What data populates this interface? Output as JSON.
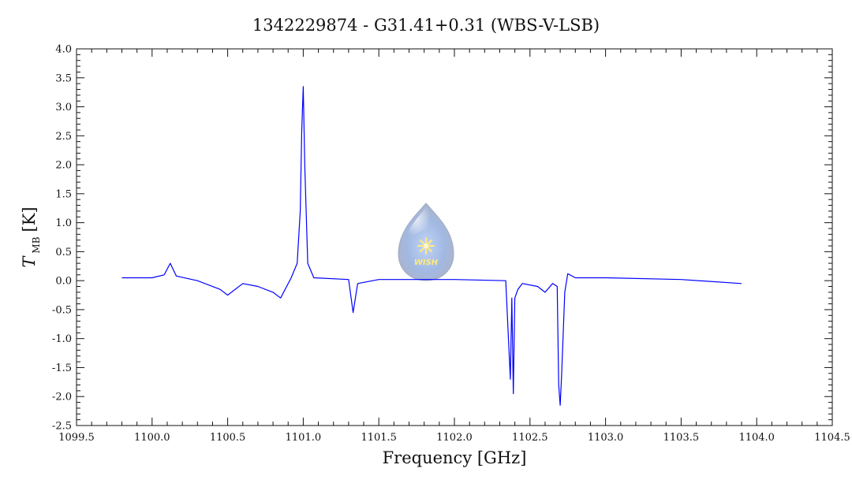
{
  "chart_data": {
    "type": "line",
    "title": "1342229874 - G31.41+0.31 (WBS-V-LSB)",
    "xlabel": "Frequency [GHz]",
    "ylabel": {
      "symbol": "T",
      "subscript": "MB",
      "unit": "[K]"
    },
    "xlim": [
      1099.5,
      1104.5
    ],
    "ylim": [
      -2.5,
      4.0
    ],
    "xticks": [
      "1099.5",
      "1100.0",
      "1100.5",
      "1101.0",
      "1101.5",
      "1102.0",
      "1102.5",
      "1103.0",
      "1103.5",
      "1104.0",
      "1104.5"
    ],
    "yticks": [
      "-2.5",
      "-2.0",
      "-1.5",
      "-1.0",
      "-0.5",
      "0.0",
      "0.5",
      "1.0",
      "1.5",
      "2.0",
      "2.5",
      "3.0",
      "3.5",
      "4.0"
    ],
    "grid": false,
    "series": [
      {
        "color": "#0000ff",
        "x": [
          1099.8,
          1100.0,
          1100.08,
          1100.12,
          1100.16,
          1100.3,
          1100.45,
          1100.5,
          1100.6,
          1100.7,
          1100.8,
          1100.85,
          1100.92,
          1100.96,
          1100.98,
          1100.99,
          1101.0,
          1101.01,
          1101.03,
          1101.07,
          1101.3,
          1101.33,
          1101.36,
          1101.5,
          1102.0,
          1102.34,
          1102.37,
          1102.38,
          1102.39,
          1102.4,
          1102.42,
          1102.45,
          1102.55,
          1102.6,
          1102.65,
          1102.68,
          1102.69,
          1102.7,
          1102.71,
          1102.73,
          1102.75,
          1102.8,
          1103.0,
          1103.5,
          1103.9
        ],
        "y": [
          0.05,
          0.05,
          0.1,
          0.3,
          0.08,
          0.0,
          -0.15,
          -0.25,
          -0.05,
          -0.1,
          -0.2,
          -0.3,
          0.05,
          0.3,
          1.2,
          2.6,
          3.35,
          2.0,
          0.3,
          0.05,
          0.02,
          -0.55,
          -0.05,
          0.02,
          0.02,
          0.0,
          -1.7,
          -0.3,
          -1.95,
          -0.3,
          -0.15,
          -0.05,
          -0.1,
          -0.2,
          -0.05,
          -0.1,
          -1.8,
          -2.15,
          -1.6,
          -0.2,
          0.12,
          0.05,
          0.05,
          0.02,
          -0.05
        ]
      }
    ]
  },
  "logo": {
    "text": "WISH"
  }
}
